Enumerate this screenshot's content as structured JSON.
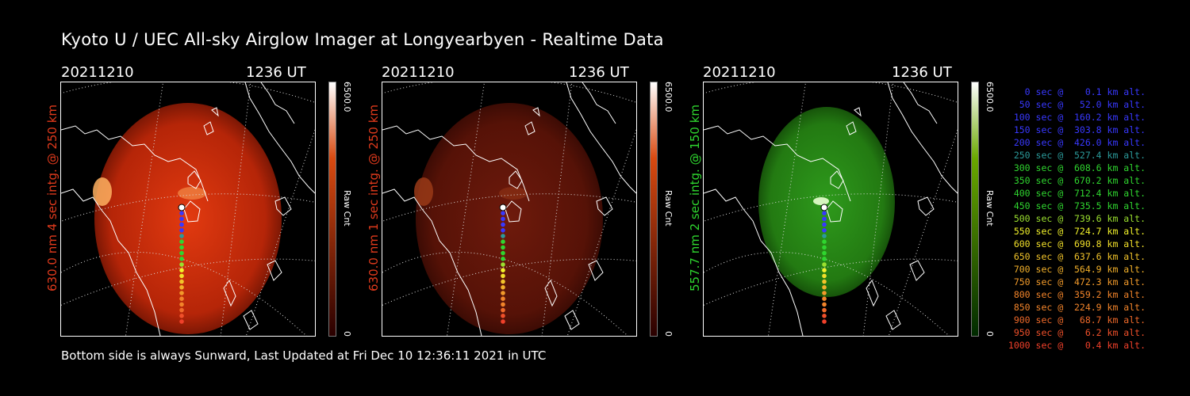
{
  "title": "Kyoto U / UEC All-sky Airglow Imager at Longyearbyen - Realtime Data",
  "footer": "Bottom side is always Sunward, Last Updated at Fri Dec 10 12:36:11 2021 in UTC",
  "panels": [
    {
      "date": "20211210",
      "time": "1236 UT",
      "ylabel": "630.0 nm 4 sec intg. @ 250 km",
      "ylabel_color": "#e03a1c",
      "colorbar_max": "6500.0",
      "colorbar_min": "0",
      "colorbar_unit": "Raw Cnt",
      "colorbar_top": "#ffffff",
      "colorbar_mid": "#d84a10",
      "colorbar_bottom": "#2a0000",
      "image_colors": [
        "#e23a10",
        "#b52508",
        "#5c1003"
      ],
      "image_brightness": "bright"
    },
    {
      "date": "20211210",
      "time": "1236 UT",
      "ylabel": "630.0 nm 1 sec intg. @ 250 km",
      "ylabel_color": "#e03a1c",
      "colorbar_max": "6500.0",
      "colorbar_min": "0",
      "colorbar_unit": "Raw Cnt",
      "colorbar_top": "#ffffff",
      "colorbar_mid": "#d84a10",
      "colorbar_bottom": "#2a0000",
      "image_colors": [
        "#6e1a0c",
        "#561207",
        "#2e0803"
      ],
      "image_brightness": "dim"
    },
    {
      "date": "20211210",
      "time": "1236 UT",
      "ylabel": "557.7 nm 2 sec intg. @ 150 km",
      "ylabel_color": "#2fd62f",
      "colorbar_max": "6500.0",
      "colorbar_min": "0",
      "colorbar_unit": "Raw Cnt",
      "colorbar_top": "#ffffff",
      "colorbar_mid": "#6aa800",
      "colorbar_bottom": "#002a00",
      "image_colors": [
        "#2e9a1c",
        "#237a12",
        "#103f06"
      ],
      "image_brightness": "green"
    }
  ],
  "legend": [
    {
      "text": "0 sec @    0.1 km alt.",
      "color": "#3838ff"
    },
    {
      "text": "50 sec @   52.0 km alt.",
      "color": "#3838ff"
    },
    {
      "text": "100 sec @  160.2 km alt.",
      "color": "#3838ff"
    },
    {
      "text": "150 sec @  303.8 km alt.",
      "color": "#3838ff"
    },
    {
      "text": "200 sec @  426.0 km alt.",
      "color": "#3838ff"
    },
    {
      "text": "250 sec @  527.4 km alt.",
      "color": "#2b9a9a"
    },
    {
      "text": "300 sec @  608.6 km alt.",
      "color": "#2fd62f"
    },
    {
      "text": "350 sec @  670.2 km alt.",
      "color": "#2fd62f"
    },
    {
      "text": "400 sec @  712.4 km alt.",
      "color": "#2fd62f"
    },
    {
      "text": "450 sec @  735.5 km alt.",
      "color": "#2fd62f"
    },
    {
      "text": "500 sec @  739.6 km alt.",
      "color": "#9be02f"
    },
    {
      "text": "550 sec @  724.7 km alt.",
      "color": "#f2f22a"
    },
    {
      "text": "600 sec @  690.8 km alt.",
      "color": "#f2e02a"
    },
    {
      "text": "650 sec @  637.6 km alt.",
      "color": "#f2c42a"
    },
    {
      "text": "700 sec @  564.9 km alt.",
      "color": "#f2b02a"
    },
    {
      "text": "750 sec @  472.3 km alt.",
      "color": "#f29a2a"
    },
    {
      "text": "800 sec @  359.2 km alt.",
      "color": "#f2842a"
    },
    {
      "text": "850 sec @  224.9 km alt.",
      "color": "#f2842a"
    },
    {
      "text": "900 sec @   68.7 km alt.",
      "color": "#f06a2a"
    },
    {
      "text": "950 sec @    6.2 km alt.",
      "color": "#f0502a"
    },
    {
      "text": "1000 sec @    0.4 km alt.",
      "color": "#f0402a"
    }
  ],
  "track_colors": [
    "#ffffff",
    "#3838ff",
    "#3838ff",
    "#3838ff",
    "#3838ff",
    "#2b9a9a",
    "#2fd62f",
    "#2fd62f",
    "#2fd62f",
    "#2fd62f",
    "#9be02f",
    "#f2f22a",
    "#f2e02a",
    "#f2c42a",
    "#f2b02a",
    "#f29a2a",
    "#f2842a",
    "#f2842a",
    "#f06a2a",
    "#f0502a",
    "#f0402a"
  ]
}
